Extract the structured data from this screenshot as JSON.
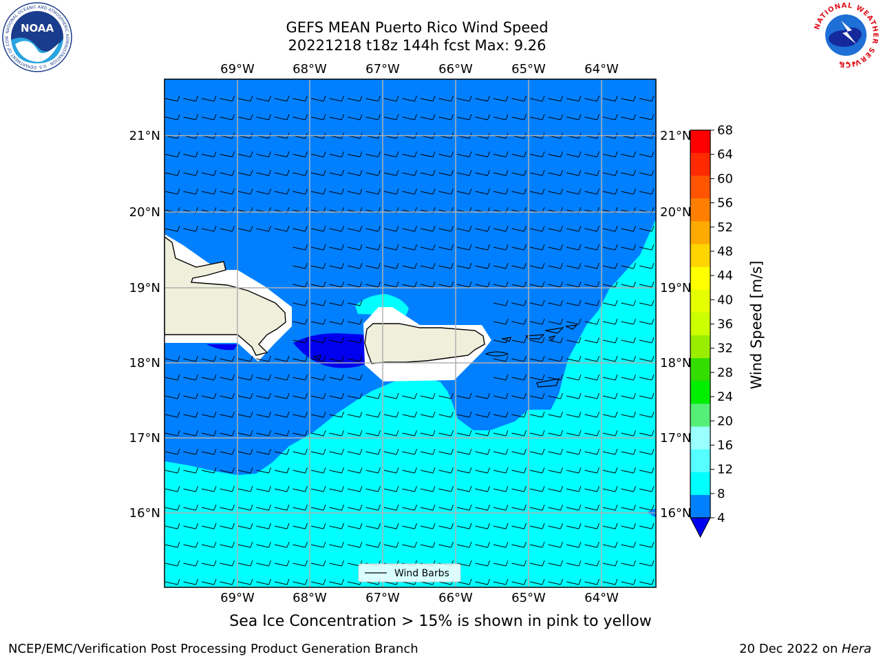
{
  "title_line1": "GEFS MEAN Puerto Rico Wind Speed",
  "title_line2": "20221218 t18z 144h fcst   Max: 9.26",
  "lon_labels": [
    "69°W",
    "68°W",
    "67°W",
    "66°W",
    "65°W",
    "64°W"
  ],
  "lat_labels": [
    "21°N",
    "20°N",
    "19°N",
    "18°N",
    "17°N",
    "16°N"
  ],
  "colorbar": {
    "label": "Wind Speed [m/s]",
    "ticks": [
      "68",
      "64",
      "60",
      "56",
      "52",
      "48",
      "44",
      "40",
      "36",
      "32",
      "28",
      "24",
      "20",
      "16",
      "12",
      "8",
      "4"
    ],
    "colors": [
      "#ff0000",
      "#ff2a00",
      "#ff5500",
      "#ff8000",
      "#ffaa00",
      "#ffd400",
      "#ffff00",
      "#e6ff00",
      "#ccff00",
      "#99ee00",
      "#33dd00",
      "#00ee00",
      "#55ee77",
      "#99ffff",
      "#55ffff",
      "#00ffff",
      "#0080ff"
    ],
    "under_color": "#0000ee"
  },
  "legend_label": "Wind Barbs",
  "caption": "Sea Ice Concentration > 15% is shown in pink to yellow",
  "footer_left": "NCEP/EMC/Verification Post Processing Product Generation Branch",
  "footer_date": "20 Dec 2022 on ",
  "footer_machine": "Hera",
  "noaa_logo": {
    "text": "NOAA",
    "ring_text": "NATIONAL OCEANIC AND ATMOSPHERIC ADMINISTRATION · U.S. DEPARTMENT OF COMMERCE"
  },
  "nws_logo": {
    "ring_text": "NATIONAL WEATHER SERVICE"
  },
  "colors": {
    "ocean_low": "#0080ff",
    "ocean_mid": "#00ffff",
    "calm": "#0000ee",
    "land": "#efefdc"
  }
}
